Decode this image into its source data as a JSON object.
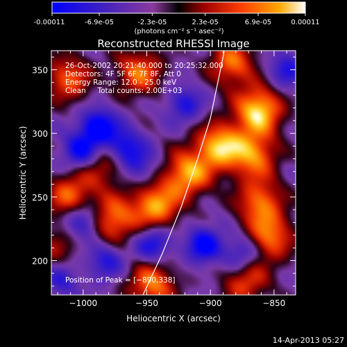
{
  "colorbar": {
    "tick_labels": [
      "-0.00011",
      "-6.9e-05",
      "-2.3e-05",
      "2.3e-05",
      "6.9e-05",
      "0.00011"
    ],
    "tick_values": [
      -0.00011,
      -6.9e-05,
      -2.3e-05,
      2.3e-05,
      6.9e-05,
      0.00011
    ],
    "unit_label": "(photons cm⁻² s⁻¹ asec⁻²)"
  },
  "chart_data": {
    "type": "heatmap",
    "title": "Reconstructed RHESSI Image",
    "xlabel": "Heliocentric X (arcsec)",
    "ylabel": "Heliocentric Y (arcsec)",
    "xlim": [
      -1025,
      -833
    ],
    "ylim": [
      173,
      365
    ],
    "xticks": [
      -1000,
      -950,
      -900,
      -850
    ],
    "xtick_labels": [
      "−1000",
      "−950",
      "−900",
      "−850"
    ],
    "yticks": [
      200,
      250,
      300,
      350
    ],
    "ytick_labels": [
      "200",
      "250",
      "300",
      "350"
    ],
    "info_lines": [
      "26-Oct-2002 20:21:40.000 to 20:25:32.000",
      "Detectors: 4F 5F 6F 7F 8F, Att 0",
      "Energy Range: 12.0 - 25.0 keV",
      "Clean     Total counts: 2.00E+03"
    ],
    "peak_label": "Position of Peak = [−890,338]",
    "peak_position": [
      -890,
      338
    ],
    "value_range": [
      -0.00011,
      0.00011
    ],
    "hot_spots": [
      {
        "x": -862,
        "y": 318,
        "v": 1.0
      },
      {
        "x": -893,
        "y": 290,
        "v": 0.9
      },
      {
        "x": -918,
        "y": 268,
        "v": 0.85
      },
      {
        "x": -943,
        "y": 243,
        "v": 0.85
      },
      {
        "x": -977,
        "y": 232,
        "v": 0.75
      },
      {
        "x": -1010,
        "y": 250,
        "v": 0.7
      },
      {
        "x": -866,
        "y": 283,
        "v": 0.75
      },
      {
        "x": -861,
        "y": 246,
        "v": 0.7
      },
      {
        "x": -956,
        "y": 348,
        "v": 0.7
      },
      {
        "x": -1012,
        "y": 343,
        "v": 0.65
      },
      {
        "x": -853,
        "y": 218,
        "v": 0.7
      },
      {
        "x": -946,
        "y": 181,
        "v": 0.75
      },
      {
        "x": -872,
        "y": 184,
        "v": 0.6
      },
      {
        "x": -883,
        "y": 355,
        "v": 0.7
      },
      {
        "x": -985,
        "y": 274,
        "v": 0.45
      },
      {
        "x": -1022,
        "y": 208,
        "v": 0.35
      }
    ],
    "cold_spots": [
      {
        "x": -988,
        "y": 305,
        "v": -0.8
      },
      {
        "x": -1002,
        "y": 286,
        "v": -0.7
      },
      {
        "x": -968,
        "y": 290,
        "v": -0.6
      },
      {
        "x": -1000,
        "y": 232,
        "v": -0.7
      },
      {
        "x": -945,
        "y": 213,
        "v": -0.6
      },
      {
        "x": -920,
        "y": 323,
        "v": -0.5
      },
      {
        "x": -905,
        "y": 212,
        "v": -0.7
      },
      {
        "x": -875,
        "y": 205,
        "v": -0.55
      },
      {
        "x": -955,
        "y": 275,
        "v": -0.4
      },
      {
        "x": -1018,
        "y": 185,
        "v": -0.45
      },
      {
        "x": -840,
        "y": 350,
        "v": -0.5
      },
      {
        "x": -982,
        "y": 200,
        "v": -0.5
      }
    ],
    "limb_points": [
      [
        -953,
        173
      ],
      [
        -938,
        205
      ],
      [
        -923,
        242
      ],
      [
        -910,
        280
      ],
      [
        -900,
        312
      ],
      [
        -889,
        365
      ]
    ]
  },
  "footer": {
    "date_stamp": "14-Apr-2013 05:27"
  }
}
